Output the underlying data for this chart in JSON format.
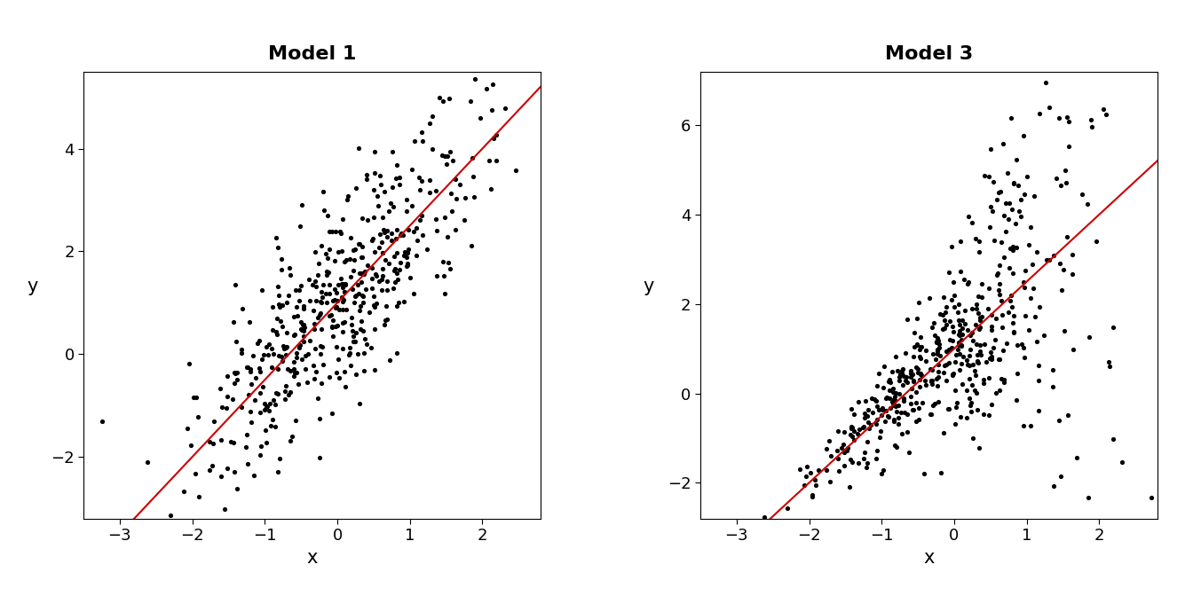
{
  "title1": "Model 1",
  "title2": "Model 3",
  "xlabel": "x",
  "ylabel": "y",
  "seed": 42,
  "n": 500,
  "beta0": 1.0,
  "beta1": 1.5,
  "sigma1": 1.0,
  "model3_sigma_scale": 0.7,
  "xlim": [
    -3.5,
    2.8
  ],
  "ylim1": [
    -3.2,
    5.5
  ],
  "ylim2": [
    -2.8,
    7.2
  ],
  "xticks": [
    -3,
    -2,
    -1,
    0,
    1,
    2
  ],
  "yticks1": [
    -2,
    0,
    2,
    4
  ],
  "yticks2": [
    -2,
    0,
    2,
    4,
    6
  ],
  "line_color": "#cc0000",
  "dot_color": "#000000",
  "dot_size": 14,
  "title_fontsize": 16,
  "label_fontsize": 15,
  "tick_fontsize": 13,
  "title_fontweight": "bold",
  "background_color": "#ffffff",
  "line_x_start": -3.5,
  "line_x_end": 2.8
}
